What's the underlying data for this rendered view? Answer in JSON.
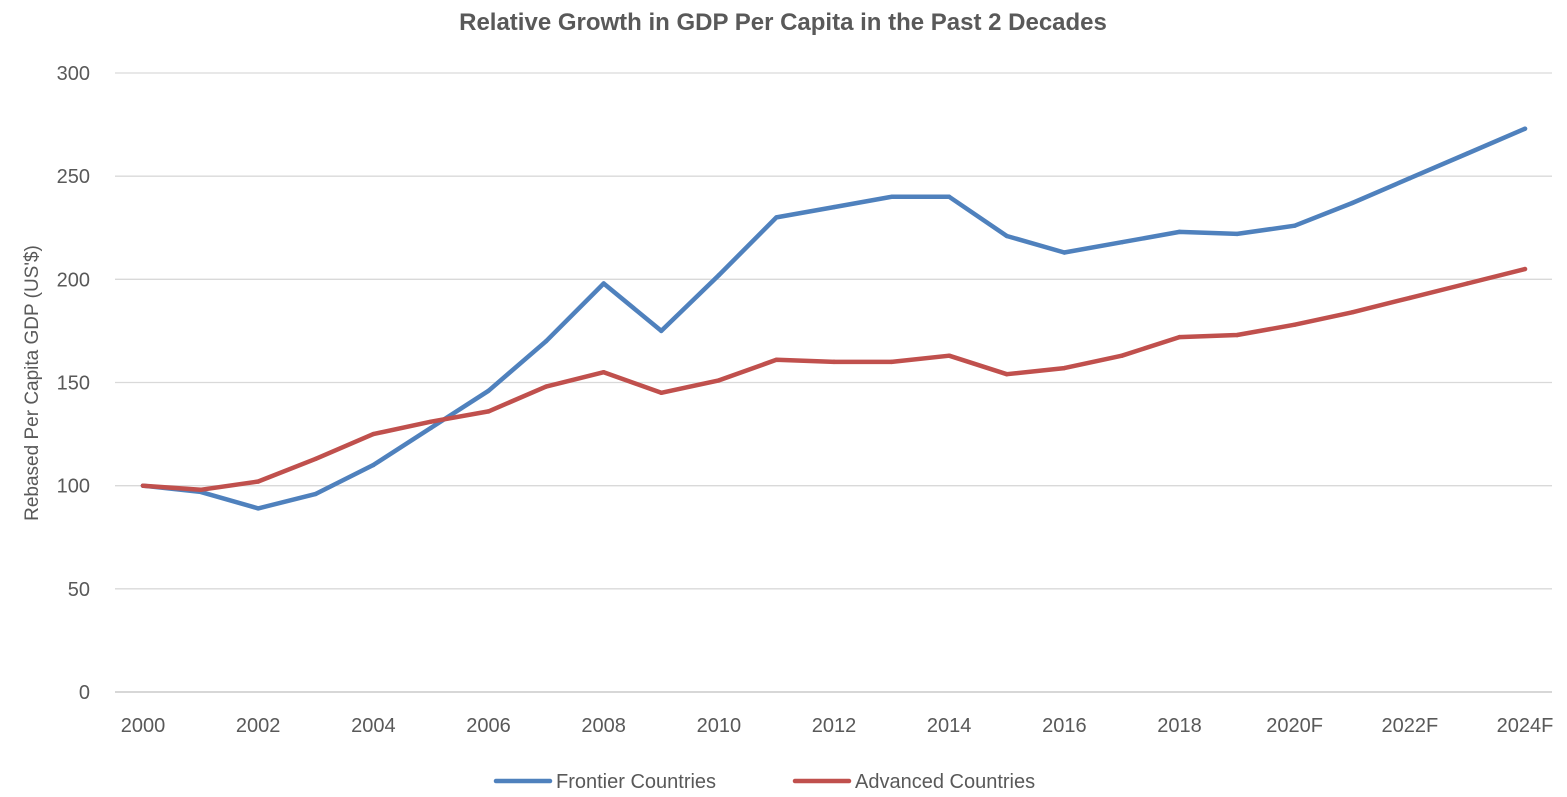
{
  "chart_data": {
    "type": "line",
    "title": "Relative Growth in GDP Per Capita in the Past 2 Decades",
    "xlabel": "",
    "ylabel": "Rebased Per Capita GDP  (US'$)",
    "ylim": [
      0,
      300
    ],
    "yticks": [
      "0",
      "50",
      "100",
      "150",
      "200",
      "250",
      "300"
    ],
    "grid": true,
    "legend_position": "bottom",
    "categories": [
      "2000",
      "2001",
      "2002",
      "2003",
      "2004",
      "2005",
      "2006",
      "2007",
      "2008",
      "2009",
      "2010",
      "2011",
      "2012",
      "2013",
      "2014",
      "2015",
      "2016",
      "2017",
      "2018",
      "2019",
      "2020F",
      "2021F",
      "2022F",
      "2023F",
      "2024F"
    ],
    "tick_labels": [
      "2000",
      "",
      "2002",
      "",
      "2004",
      "",
      "2006",
      "",
      "2008",
      "",
      "2010",
      "",
      "2012",
      "",
      "2014",
      "",
      "2016",
      "",
      "2018",
      "",
      "2020F",
      "",
      "2022F",
      "",
      "2024F"
    ],
    "series": [
      {
        "name": "Frontier Countries",
        "color": "#4f81bd",
        "values": [
          100,
          97,
          89,
          96,
          110,
          128,
          146,
          170,
          198,
          175,
          202,
          230,
          235,
          240,
          240,
          221,
          213,
          218,
          223,
          222,
          226,
          237,
          249,
          261,
          273
        ]
      },
      {
        "name": "Advanced Countries",
        "color": "#c0504d",
        "values": [
          100,
          98,
          102,
          113,
          125,
          131,
          136,
          148,
          155,
          145,
          151,
          161,
          160,
          160,
          163,
          154,
          157,
          163,
          172,
          173,
          178,
          184,
          191,
          198,
          205
        ]
      }
    ]
  }
}
